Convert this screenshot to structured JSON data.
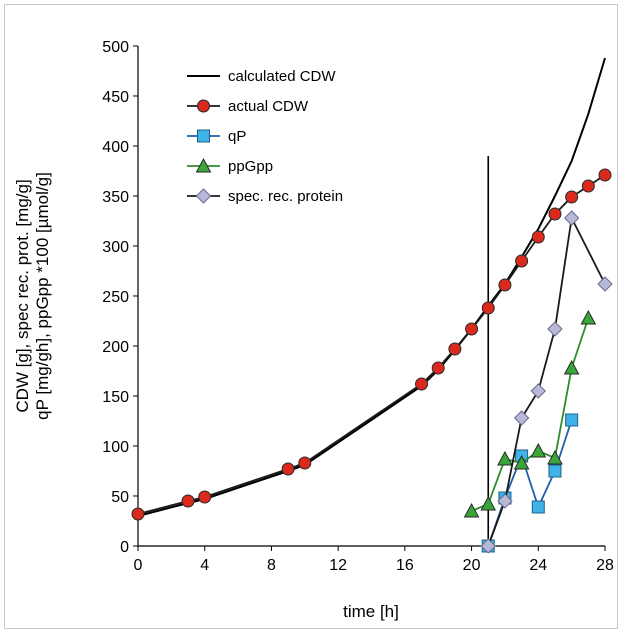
{
  "chart_data": {
    "type": "line",
    "title": "",
    "xlabel": "time [h]",
    "ylabel_lines": [
      "CDW [g], spec rec. prot. [mg/g]",
      "qP [mg/gh], ppGpp *100 [µmol/g]"
    ],
    "xlim": [
      0,
      28
    ],
    "ylim": [
      0,
      500
    ],
    "xticks": [
      0,
      4,
      8,
      12,
      16,
      20,
      24,
      28
    ],
    "yticks": [
      0,
      50,
      100,
      150,
      200,
      250,
      300,
      350,
      400,
      450,
      500
    ],
    "grid": false,
    "legend_position": "top-left",
    "vertical_line": {
      "x": 21,
      "y_top": 390
    },
    "series": [
      {
        "name": "calculated CDW",
        "marker": "none",
        "color": "#000000",
        "x": [
          0,
          3,
          4,
          9,
          10,
          17,
          18,
          19,
          20,
          21,
          22,
          23,
          24,
          25,
          26,
          27,
          28
        ],
        "y": [
          30,
          43,
          47,
          75,
          81,
          160,
          176,
          196,
          217,
          240,
          262,
          289,
          317,
          350,
          385,
          432,
          488
        ]
      },
      {
        "name": "actual CDW",
        "marker": "circle",
        "color": "#d92a1c",
        "x": [
          0,
          3,
          4,
          9,
          10,
          17,
          18,
          19,
          20,
          21,
          22,
          23,
          24,
          25,
          26,
          27,
          28
        ],
        "y": [
          32,
          45,
          49,
          77,
          83,
          162,
          178,
          197,
          217,
          238,
          261,
          285,
          309,
          332,
          349,
          360,
          371
        ]
      },
      {
        "name": "qP",
        "marker": "square",
        "color": "#3fb3e8",
        "x": [
          21,
          22,
          23,
          24,
          25,
          26
        ],
        "y": [
          0,
          48,
          90,
          39,
          75,
          126
        ]
      },
      {
        "name": "ppGpp",
        "marker": "triangle",
        "color": "#3aa63a",
        "x": [
          20,
          21,
          22,
          23,
          24,
          25,
          26,
          27
        ],
        "y": [
          35,
          42,
          87,
          83,
          95,
          88,
          178,
          228
        ]
      },
      {
        "name": "spec. rec. protein",
        "marker": "diamond",
        "color": "#b8b8d8",
        "x": [
          21,
          22,
          23,
          24,
          25,
          26,
          28
        ],
        "y": [
          0,
          45,
          128,
          155,
          217,
          328,
          262
        ]
      }
    ]
  }
}
